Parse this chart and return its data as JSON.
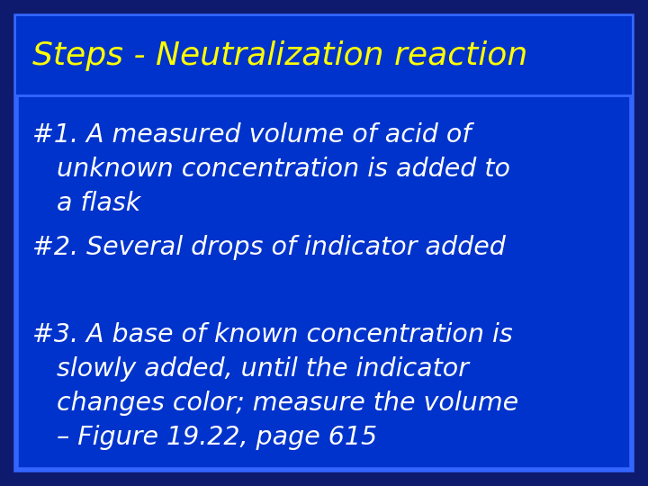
{
  "title": "Steps - Neutralization reaction",
  "title_color": "#FFFF00",
  "title_fontsize": 26,
  "body_lines": [
    "#1. A measured volume of acid of\n   unknown concentration is added to\n   a flask",
    "#2. Several drops of indicator added",
    "#3. A base of known concentration is\n   slowly added, until the indicator\n   changes color; measure the volume\n   – Figure 19.22, page 615"
  ],
  "body_color": "#FFFFFF",
  "body_fontsize": 20.5,
  "background_outer": "#0d1a6e",
  "background_inner": "#0033cc",
  "border_color": "#3366ff",
  "title_divider_color": "#3366ff"
}
